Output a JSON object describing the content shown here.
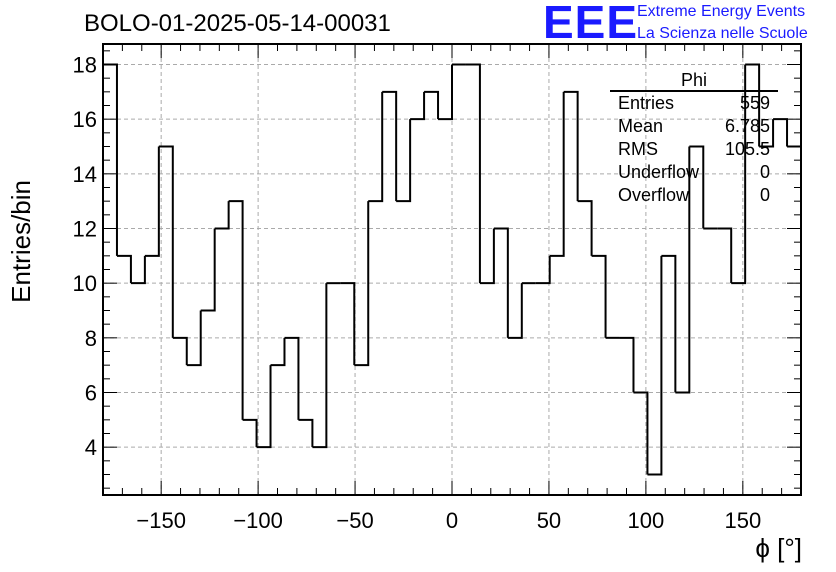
{
  "title": "BOLO-01-2025-05-14-00031",
  "logo": {
    "mark": "EEE",
    "line1": "Extreme Energy Events",
    "line2": "La Scienza nelle Scuole",
    "color": "#1a1aff"
  },
  "stats": {
    "title": "Phi",
    "rows": [
      {
        "label": "Entries",
        "value": "559"
      },
      {
        "label": "Mean",
        "value": "6.785"
      },
      {
        "label": "RMS",
        "value": "105.5"
      },
      {
        "label": "Underflow",
        "value": "0"
      },
      {
        "label": "Overflow",
        "value": "0"
      }
    ]
  },
  "chart_data": {
    "type": "histogram",
    "title": "BOLO-01-2025-05-14-00031",
    "xlabel": "ϕ [°]",
    "ylabel": "Entries/bin",
    "xlim": [
      -180,
      180
    ],
    "ylim": [
      2.25,
      18.75
    ],
    "bin_width": 7.2,
    "bin_edges_start": -180,
    "xticks": [
      -150,
      -100,
      -50,
      0,
      50,
      100,
      150
    ],
    "xtick_labels": [
      "−150",
      "−100",
      "−50",
      "0",
      "50",
      "100",
      "150"
    ],
    "yticks": [
      4,
      6,
      8,
      10,
      12,
      14,
      16,
      18
    ],
    "ytick_labels": [
      "4",
      "6",
      "8",
      "10",
      "12",
      "14",
      "16",
      "18"
    ],
    "values": [
      18,
      11,
      10,
      11,
      15,
      8,
      7,
      9,
      12,
      13,
      5,
      4,
      7,
      8,
      5,
      4,
      10,
      10,
      7,
      13,
      17,
      13,
      16,
      17,
      16,
      18,
      18,
      10,
      12,
      8,
      10,
      10,
      11,
      17,
      13,
      11,
      8,
      8,
      6,
      3,
      11,
      6,
      15,
      12,
      12,
      10,
      18,
      15,
      16,
      15
    ],
    "grid": true,
    "line_color": "#000000"
  }
}
